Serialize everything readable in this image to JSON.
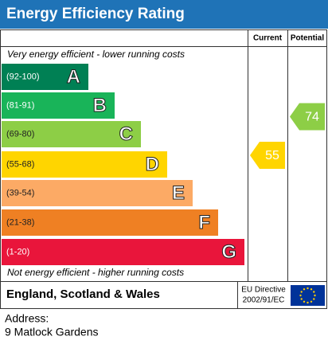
{
  "header": {
    "title": "Energy Efficiency Rating"
  },
  "columns": {
    "current": "Current",
    "potential": "Potential"
  },
  "top_note": "Very energy efficient - lower running costs",
  "bottom_note": "Not energy efficient - higher running costs",
  "bands": [
    {
      "range": "(92-100)",
      "letter": "A",
      "color": "#008054",
      "text_color": "#ffffff"
    },
    {
      "range": "(81-91)",
      "letter": "B",
      "color": "#19b459",
      "text_color": "#ffffff"
    },
    {
      "range": "(69-80)",
      "letter": "C",
      "color": "#8dce46",
      "text_color": "#222222"
    },
    {
      "range": "(55-68)",
      "letter": "D",
      "color": "#ffd500",
      "text_color": "#222222"
    },
    {
      "range": "(39-54)",
      "letter": "E",
      "color": "#fcaa65",
      "text_color": "#222222"
    },
    {
      "range": "(21-38)",
      "letter": "F",
      "color": "#ef8023",
      "text_color": "#222222"
    },
    {
      "range": "(1-20)",
      "letter": "G",
      "color": "#e9153b",
      "text_color": "#ffffff"
    }
  ],
  "current": {
    "value": 55,
    "color": "#ffd500"
  },
  "potential": {
    "value": 74,
    "color": "#8dce46"
  },
  "footer": {
    "region": "England, Scotland & Wales",
    "directive_line1": "EU Directive",
    "directive_line2": "2002/91/EC"
  },
  "address": {
    "label": "Address:",
    "line": "9 Matlock Gardens"
  }
}
